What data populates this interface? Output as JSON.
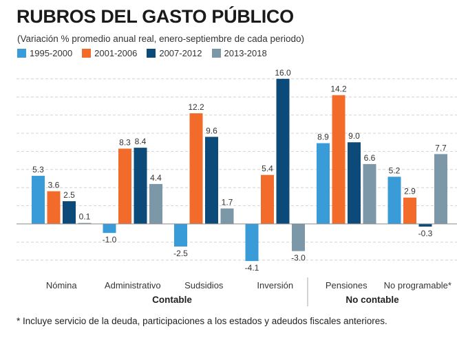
{
  "header": {
    "title": "RUBROS DEL GASTO PÚBLICO",
    "subtitle": "(Variación % promedio anual real, enero-septiembre de cada periodo)"
  },
  "footnote": "* Incluye servicio de la deuda, participaciones a los estados y adeudos fiscales anteriores.",
  "chart_data": {
    "type": "bar",
    "title": "RUBROS DEL GASTO PÚBLICO",
    "subtitle": "(Variación % promedio anual real, enero-septiembre de cada periodo)",
    "categories": [
      "Nómina",
      "Administrativo",
      "Sudsidios",
      "Inversión",
      "Pensiones",
      "No programable*"
    ],
    "groups": [
      {
        "label": "Contable",
        "categories": [
          "Nómina",
          "Administrativo",
          "Sudsidios",
          "Inversión"
        ]
      },
      {
        "label": "No contable",
        "categories": [
          "Pensiones",
          "No programable*"
        ]
      }
    ],
    "series": [
      {
        "name": "1995-2000",
        "color": "#3a9bd9",
        "values": [
          5.3,
          -1.0,
          -2.5,
          -4.1,
          8.9,
          5.2
        ]
      },
      {
        "name": "2001-2006",
        "color": "#f26b2a",
        "values": [
          3.6,
          8.3,
          12.2,
          5.4,
          14.2,
          2.9
        ]
      },
      {
        "name": "2007-2012",
        "color": "#0c4a7a",
        "values": [
          2.5,
          8.4,
          9.6,
          16.0,
          9.0,
          -0.3
        ]
      },
      {
        "name": "2013-2018",
        "color": "#7c97a8",
        "values": [
          0.1,
          4.4,
          1.7,
          -3.0,
          6.6,
          7.7
        ]
      }
    ],
    "ylim": [
      -5,
      16.5
    ],
    "grid": true,
    "legend_position": "top-left",
    "xlabel": "",
    "ylabel": ""
  }
}
